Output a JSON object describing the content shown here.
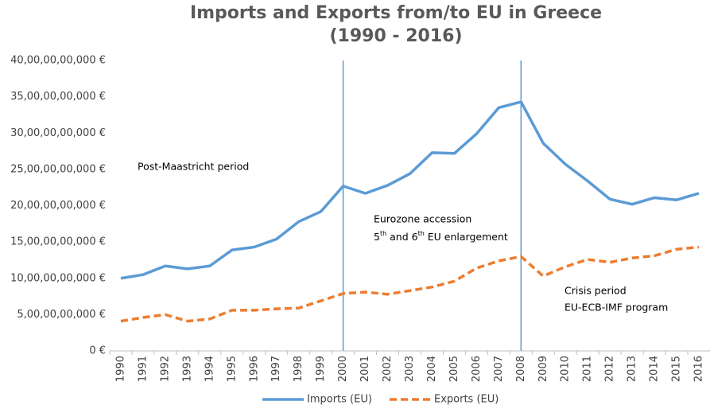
{
  "chart_data": {
    "type": "line",
    "title": "Imports and Exports from/to EU in Greece",
    "subtitle": "(1990 - 2016)",
    "categories": [
      "1990",
      "1991",
      "1992",
      "1993",
      "1994",
      "1995",
      "1996",
      "1997",
      "1998",
      "1999",
      "2000",
      "2001",
      "2002",
      "2003",
      "2004",
      "2005",
      "2006",
      "2007",
      "2008",
      "2009",
      "2010",
      "2011",
      "2012",
      "2013",
      "2014",
      "2015",
      "2016"
    ],
    "series": [
      {
        "name": "Imports (EU)",
        "color": "#5b9bd5",
        "dash": false,
        "values": [
          10000000000,
          10500000000,
          11700000000,
          11300000000,
          11700000000,
          13900000000,
          14300000000,
          15400000000,
          17800000000,
          19200000000,
          22700000000,
          21700000000,
          22800000000,
          24400000000,
          27300000000,
          27200000000,
          29900000000,
          33500000000,
          34300000000,
          28600000000,
          25700000000,
          23400000000,
          20900000000,
          20200000000,
          21100000000,
          20800000000,
          21700000000
        ]
      },
      {
        "name": "Exports (EU)",
        "color": "#ed7d31",
        "dash": true,
        "values": [
          4100000000,
          4600000000,
          5000000000,
          4100000000,
          4400000000,
          5600000000,
          5600000000,
          5800000000,
          5900000000,
          6900000000,
          7900000000,
          8100000000,
          7800000000,
          8300000000,
          8800000000,
          9600000000,
          11400000000,
          12400000000,
          13000000000,
          10300000000,
          11600000000,
          12600000000,
          12200000000,
          12800000000,
          13100000000,
          14000000000,
          14300000000
        ]
      }
    ],
    "ylim": [
      0,
      40000000000
    ],
    "yticks": [
      {
        "value": 0,
        "label": "0 €"
      },
      {
        "value": 5000000000,
        "label": "5,00,00,00,000 €"
      },
      {
        "value": 10000000000,
        "label": "10,00,00,00,000 €"
      },
      {
        "value": 15000000000,
        "label": "15,00,00,00,000 €"
      },
      {
        "value": 20000000000,
        "label": "20,00,00,00,000 €"
      },
      {
        "value": 25000000000,
        "label": "25,00,00,00,000 €"
      },
      {
        "value": 30000000000,
        "label": "30,00,00,00,000 €"
      },
      {
        "value": 35000000000,
        "label": "35,00,00,00,000 €"
      },
      {
        "value": 40000000000,
        "label": "40,00,00,00,000 €"
      }
    ],
    "grid": false,
    "legend": "bottom",
    "annotations": {
      "post_maastricht": "Post-Maastricht period",
      "eurozone": "Eurozone accession",
      "enlargement": [
        "5",
        "th",
        " and 6",
        "th",
        " EU enlargement"
      ],
      "crisis": "Crisis period",
      "program": "EU-ECB-IMF program"
    }
  }
}
